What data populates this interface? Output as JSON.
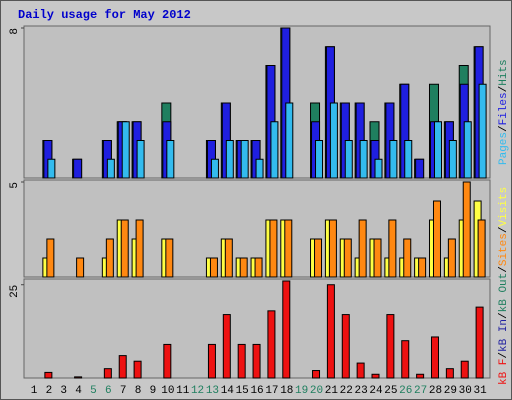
{
  "chart_data": [
    {
      "type": "bar",
      "title": "Daily usage for May 2012",
      "ylim": [
        0,
        8
      ],
      "yticks": [
        8
      ],
      "series": [
        {
          "name": "Hits",
          "color": "#1f7f5f",
          "values": [
            0,
            2,
            0,
            1,
            0,
            2,
            3,
            3,
            0,
            4,
            0,
            0,
            2,
            4,
            2,
            2,
            6,
            8,
            0,
            4,
            7,
            4,
            4,
            3,
            4,
            5,
            1,
            5,
            3,
            6,
            7
          ]
        },
        {
          "name": "Files",
          "color": "#1f1fe0",
          "values": [
            0,
            2,
            0,
            1,
            0,
            2,
            3,
            3,
            0,
            3,
            0,
            0,
            2,
            4,
            2,
            2,
            6,
            8,
            0,
            3,
            7,
            4,
            4,
            2,
            4,
            5,
            1,
            3,
            3,
            5,
            7
          ]
        },
        {
          "name": "Pages",
          "color": "#33bbee",
          "values": [
            0,
            1,
            0,
            0,
            0,
            1,
            3,
            2,
            0,
            2,
            0,
            0,
            1,
            2,
            2,
            1,
            3,
            4,
            0,
            2,
            4,
            2,
            2,
            1,
            2,
            2,
            0,
            3,
            2,
            3,
            5
          ]
        }
      ],
      "legend_order": [
        "Pages",
        "Files",
        "Hits"
      ],
      "legend_separator": "/"
    },
    {
      "type": "bar",
      "ylim": [
        0,
        5
      ],
      "yticks": [
        5
      ],
      "series": [
        {
          "name": "Visits",
          "color": "#ffff44",
          "values": [
            0,
            1,
            0,
            0,
            0,
            1,
            3,
            2,
            0,
            2,
            0,
            0,
            1,
            2,
            1,
            1,
            3,
            3,
            0,
            2,
            3,
            2,
            1,
            2,
            1,
            1,
            1,
            3,
            1,
            3,
            4
          ]
        },
        {
          "name": "Sites",
          "color": "#ff8811",
          "values": [
            0,
            2,
            0,
            1,
            0,
            2,
            3,
            3,
            0,
            2,
            0,
            0,
            1,
            2,
            1,
            1,
            3,
            3,
            0,
            2,
            3,
            2,
            3,
            2,
            3,
            2,
            1,
            4,
            2,
            5,
            3
          ]
        }
      ],
      "legend_order": [
        "Sites",
        "Visits"
      ]
    },
    {
      "type": "bar",
      "ylim": [
        0,
        26
      ],
      "yticks": [
        25
      ],
      "categories": [
        "1",
        "2",
        "3",
        "4",
        "5",
        "6",
        "7",
        "8",
        "9",
        "10",
        "11",
        "12",
        "13",
        "14",
        "15",
        "16",
        "17",
        "18",
        "19",
        "20",
        "21",
        "22",
        "23",
        "24",
        "25",
        "26",
        "27",
        "28",
        "29",
        "30",
        "31"
      ],
      "category_colors": [
        "#000",
        "#000",
        "#000",
        "#000",
        "#1f7f5f",
        "#1f7f5f",
        "#000",
        "#000",
        "#000",
        "#000",
        "#000",
        "#1f7f5f",
        "#1f7f5f",
        "#000",
        "#000",
        "#000",
        "#000",
        "#000",
        "#1f7f5f",
        "#1f7f5f",
        "#000",
        "#000",
        "#000",
        "#000",
        "#000",
        "#1f7f5f",
        "#1f7f5f",
        "#000",
        "#000",
        "#000",
        "#000"
      ],
      "series": [
        {
          "name": "kB F",
          "color": "#ee1111",
          "values": [
            0,
            1.5,
            0,
            0.3,
            0,
            2.5,
            6,
            4.5,
            0,
            9,
            0,
            0,
            9,
            17,
            9,
            9,
            18,
            26,
            0,
            2,
            25,
            17,
            4,
            1,
            17,
            10,
            1,
            11,
            2.5,
            4.5,
            19
          ]
        }
      ],
      "extra_legend": [
        {
          "text": "kB In",
          "color": "#1f1fa0"
        },
        {
          "text": "kB Out",
          "color": "#1f7f5f"
        }
      ]
    }
  ]
}
